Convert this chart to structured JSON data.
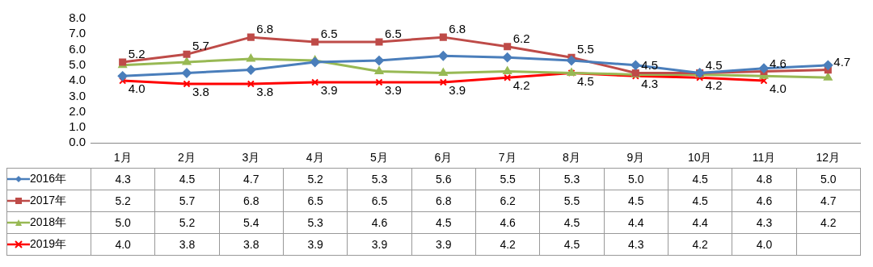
{
  "chart_data": {
    "type": "line",
    "categories": [
      "1月",
      "2月",
      "3月",
      "4月",
      "5月",
      "6月",
      "7月",
      "8月",
      "9月",
      "10月",
      "11月",
      "12月"
    ],
    "series": [
      {
        "name": "2016年",
        "color": "#4a7ebb",
        "marker": "diamond",
        "values": [
          4.3,
          4.5,
          4.7,
          5.2,
          5.3,
          5.6,
          5.5,
          5.3,
          5.0,
          4.5,
          4.8,
          5.0
        ],
        "value_labels": [
          "4.3",
          "4.5",
          "4.7",
          "5.2",
          "5.3",
          "5.6",
          "5.5",
          "5.3",
          "5.0",
          "4.5",
          "4.8",
          "5.0"
        ]
      },
      {
        "name": "2017年",
        "color": "#be4b48",
        "marker": "square",
        "data_labels": true,
        "values": [
          5.2,
          5.7,
          6.8,
          6.5,
          6.5,
          6.8,
          6.2,
          5.5,
          4.5,
          4.5,
          4.6,
          4.7
        ],
        "value_labels": [
          "5.2",
          "5.7",
          "6.8",
          "6.5",
          "6.5",
          "6.8",
          "6.2",
          "5.5",
          "4.5",
          "4.5",
          "4.6",
          "4.7"
        ]
      },
      {
        "name": "2018年",
        "color": "#98b954",
        "marker": "triangle",
        "values": [
          5.0,
          5.2,
          5.4,
          5.3,
          4.6,
          4.5,
          4.6,
          4.5,
          4.4,
          4.4,
          4.3,
          4.2
        ],
        "value_labels": [
          "5.0",
          "5.2",
          "5.4",
          "5.3",
          "4.6",
          "4.5",
          "4.6",
          "4.5",
          "4.4",
          "4.4",
          "4.3",
          "4.2"
        ]
      },
      {
        "name": "2019年",
        "color": "#ff0000",
        "marker": "cross",
        "data_labels": true,
        "values": [
          4.0,
          3.8,
          3.8,
          3.9,
          3.9,
          3.9,
          4.2,
          4.5,
          4.3,
          4.2,
          4.0,
          null
        ],
        "value_labels": [
          "4.0",
          "3.8",
          "3.8",
          "3.9",
          "3.9",
          "3.9",
          "4.2",
          "4.5",
          "4.3",
          "4.2",
          "4.0",
          null
        ]
      }
    ],
    "ylim": [
      0,
      8
    ],
    "yticks": [
      {
        "value": 0,
        "label": "0.0"
      },
      {
        "value": 1,
        "label": "1.0"
      },
      {
        "value": 2,
        "label": "2.0"
      },
      {
        "value": 3,
        "label": "3.0"
      },
      {
        "value": 4,
        "label": "4.0"
      },
      {
        "value": 5,
        "label": "5.0"
      },
      {
        "value": 6,
        "label": "6.0"
      },
      {
        "value": 7,
        "label": "7.0"
      },
      {
        "value": 8,
        "label": "8.0"
      }
    ],
    "grid": false,
    "legend": "bottom left",
    "line_style": "solid"
  }
}
